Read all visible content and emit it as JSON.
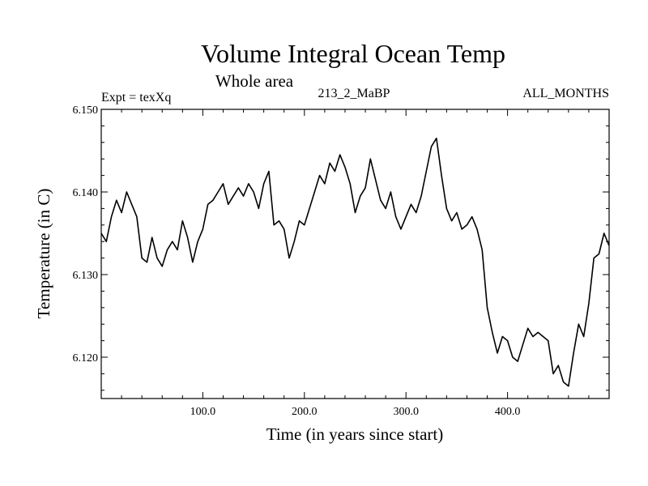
{
  "chart_data": {
    "type": "line",
    "title": "Volume Integral Ocean Temp",
    "subtitle": "Whole area",
    "experiment_label": "Expt = texXq",
    "run_label": "213_2_MaBP",
    "months_label": "ALL_MONTHS",
    "xlabel": "Time (in years since start)",
    "ylabel": "Temperature (in C)",
    "xlim": [
      0,
      500
    ],
    "ylim": [
      6.115,
      6.15
    ],
    "x_ticks": [
      {
        "value": 100,
        "label": "100.0"
      },
      {
        "value": 200,
        "label": "200.0"
      },
      {
        "value": 300,
        "label": "300.0"
      },
      {
        "value": 400,
        "label": "400.0"
      }
    ],
    "y_ticks": [
      {
        "value": 6.12,
        "label": "6.120"
      },
      {
        "value": 6.13,
        "label": "6.130"
      },
      {
        "value": 6.14,
        "label": "6.140"
      },
      {
        "value": 6.15,
        "label": "6.150"
      }
    ],
    "grid": false,
    "series": [
      {
        "name": "Volume integral ocean temperature",
        "color": "#000000",
        "x": [
          0,
          5,
          10,
          15,
          20,
          25,
          30,
          35,
          40,
          45,
          50,
          55,
          60,
          65,
          70,
          75,
          80,
          85,
          90,
          95,
          100,
          105,
          110,
          115,
          120,
          125,
          130,
          135,
          140,
          145,
          150,
          155,
          160,
          165,
          170,
          175,
          180,
          185,
          190,
          195,
          200,
          205,
          210,
          215,
          220,
          225,
          230,
          235,
          240,
          245,
          250,
          255,
          260,
          265,
          270,
          275,
          280,
          285,
          290,
          295,
          300,
          305,
          310,
          315,
          320,
          325,
          330,
          335,
          340,
          345,
          350,
          355,
          360,
          365,
          370,
          375,
          380,
          385,
          390,
          395,
          400,
          405,
          410,
          415,
          420,
          425,
          430,
          435,
          440,
          445,
          450,
          455,
          460,
          465,
          470,
          475,
          480,
          485,
          490,
          495,
          500
        ],
        "values": [
          6.135,
          6.134,
          6.137,
          6.139,
          6.1375,
          6.14,
          6.1385,
          6.137,
          6.132,
          6.1315,
          6.1345,
          6.132,
          6.131,
          6.133,
          6.134,
          6.133,
          6.1365,
          6.1345,
          6.1315,
          6.134,
          6.1355,
          6.1385,
          6.139,
          6.14,
          6.141,
          6.1385,
          6.1395,
          6.1405,
          6.1395,
          6.141,
          6.14,
          6.138,
          6.141,
          6.1425,
          6.136,
          6.1365,
          6.1355,
          6.132,
          6.134,
          6.1365,
          6.136,
          6.138,
          6.14,
          6.142,
          6.141,
          6.1435,
          6.1425,
          6.1445,
          6.143,
          6.141,
          6.1375,
          6.1395,
          6.1405,
          6.144,
          6.1415,
          6.139,
          6.138,
          6.14,
          6.137,
          6.1355,
          6.137,
          6.1385,
          6.1375,
          6.1395,
          6.1425,
          6.1455,
          6.1465,
          6.142,
          6.138,
          6.1365,
          6.1375,
          6.1355,
          6.136,
          6.137,
          6.1355,
          6.133,
          6.126,
          6.123,
          6.1205,
          6.1225,
          6.122,
          6.12,
          6.1195,
          6.1215,
          6.1235,
          6.1225,
          6.123,
          6.1225,
          6.122,
          6.118,
          6.119,
          6.117,
          6.1165,
          6.1205,
          6.124,
          6.1225,
          6.1265,
          6.132,
          6.1325,
          6.135,
          6.1335
        ]
      }
    ]
  }
}
